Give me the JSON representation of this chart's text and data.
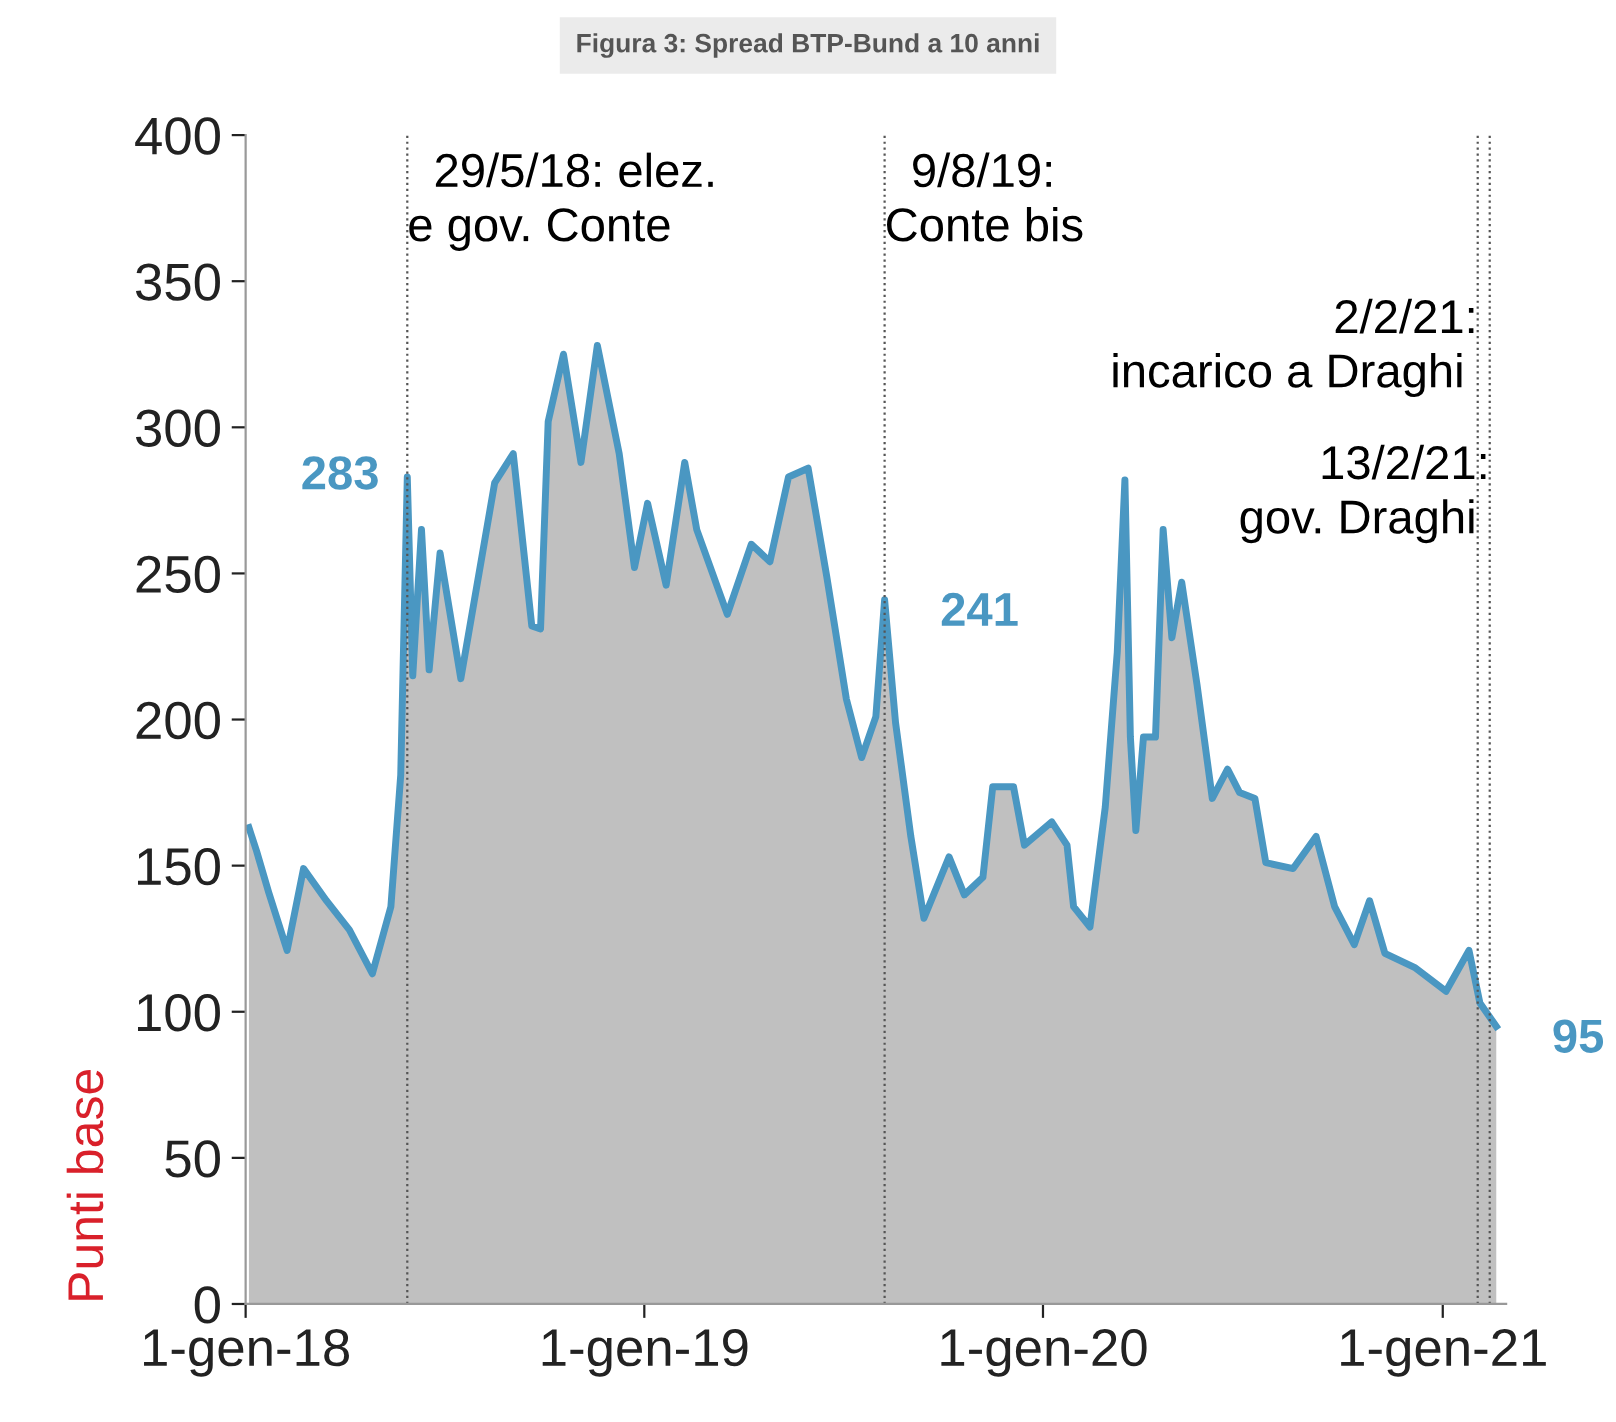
{
  "chart_data": {
    "type": "area",
    "title": "Figura 3: Spread BTP-Bund a 10 anni",
    "ylabel": "Punti base",
    "x": [
      "2018-01-04",
      "2018-01-11",
      "2018-01-22",
      "2018-02-08",
      "2018-02-23",
      "2018-03-16",
      "2018-04-06",
      "2018-04-27",
      "2018-05-14",
      "2018-05-23",
      "2018-05-29",
      "2018-06-03",
      "2018-06-11",
      "2018-06-18",
      "2018-06-28",
      "2018-07-17",
      "2018-08-17",
      "2018-09-03",
      "2018-09-20",
      "2018-09-28",
      "2018-10-05",
      "2018-10-19",
      "2018-11-04",
      "2018-11-19",
      "2018-12-09",
      "2018-12-23",
      "2019-01-04",
      "2019-01-21",
      "2019-02-07",
      "2019-02-18",
      "2019-03-18",
      "2019-04-09",
      "2019-04-26",
      "2019-05-13",
      "2019-05-31",
      "2019-06-17",
      "2019-07-05",
      "2019-07-19",
      "2019-08-01",
      "2019-08-09",
      "2019-08-19",
      "2019-09-02",
      "2019-09-14",
      "2019-10-07",
      "2019-10-21",
      "2019-11-07",
      "2019-11-16",
      "2019-12-05",
      "2019-12-15",
      "2020-01-09",
      "2020-01-23",
      "2020-01-29",
      "2020-02-13",
      "2020-02-27",
      "2020-03-09",
      "2020-03-16",
      "2020-03-21",
      "2020-03-26",
      "2020-04-02",
      "2020-04-13",
      "2020-04-20",
      "2020-04-28",
      "2020-05-07",
      "2020-05-21",
      "2020-06-04",
      "2020-06-18",
      "2020-06-29",
      "2020-07-13",
      "2020-07-23",
      "2020-08-17",
      "2020-09-07",
      "2020-09-24",
      "2020-10-12",
      "2020-10-26",
      "2020-11-09",
      "2020-12-07",
      "2021-01-04",
      "2021-01-25",
      "2021-02-04",
      "2021-02-19"
    ],
    "series": [
      {
        "color": "#4a97c2",
        "values": [
          163,
          155,
          141,
          121,
          149,
          138,
          128,
          113,
          136,
          181,
          283,
          215,
          265,
          217,
          257,
          214,
          281,
          291,
          232,
          231,
          302,
          325,
          288,
          328,
          291,
          252,
          274,
          246,
          288,
          265,
          236,
          260,
          254,
          283,
          286,
          249,
          207,
          187,
          201,
          241,
          199,
          160,
          132,
          153,
          140,
          146,
          177,
          177,
          157,
          165,
          157,
          136,
          129,
          170,
          223,
          282,
          194,
          162,
          194,
          194,
          265,
          228,
          247,
          212,
          173,
          183,
          175,
          173,
          151,
          149,
          160,
          136,
          123,
          138,
          120,
          115,
          107,
          121,
          103,
          95
        ]
      }
    ],
    "ylim": [
      0,
      400
    ],
    "yticks": [
      0,
      50,
      100,
      150,
      200,
      250,
      300,
      350,
      400
    ],
    "xlim": [
      "2018-01-01",
      "2021-02-28"
    ],
    "xticks": [
      {
        "value": "2018-01-01",
        "label": "1-gen-18"
      },
      {
        "value": "2019-01-01",
        "label": "1-gen-19"
      },
      {
        "value": "2020-01-01",
        "label": "1-gen-20"
      },
      {
        "value": "2021-01-01",
        "label": "1-gen-21"
      }
    ],
    "grid": false,
    "ref_lines": [
      {
        "axis": "x",
        "value": "2018-05-29",
        "label": "29/5/18: elez.\ne gov. Conte",
        "line_style": "dotted"
      },
      {
        "axis": "x",
        "value": "2019-08-09",
        "label": "9/8/19:\nConte bis",
        "line_style": "dotted"
      },
      {
        "axis": "x",
        "value": "2021-02-02",
        "label": "2/2/21:\nincarico a Draghi",
        "line_style": "dotted"
      },
      {
        "axis": "x",
        "value": "2021-02-13",
        "label": "13/2/21:\ngov. Draghi",
        "line_style": "dotted"
      }
    ],
    "annotations": [
      {
        "text": "283",
        "x": "2018-05-29",
        "y": 283
      },
      {
        "text": "241",
        "x": "2019-08-09",
        "y": 241
      },
      {
        "text": "95",
        "x": "2021-02-19",
        "y": 95
      }
    ]
  }
}
